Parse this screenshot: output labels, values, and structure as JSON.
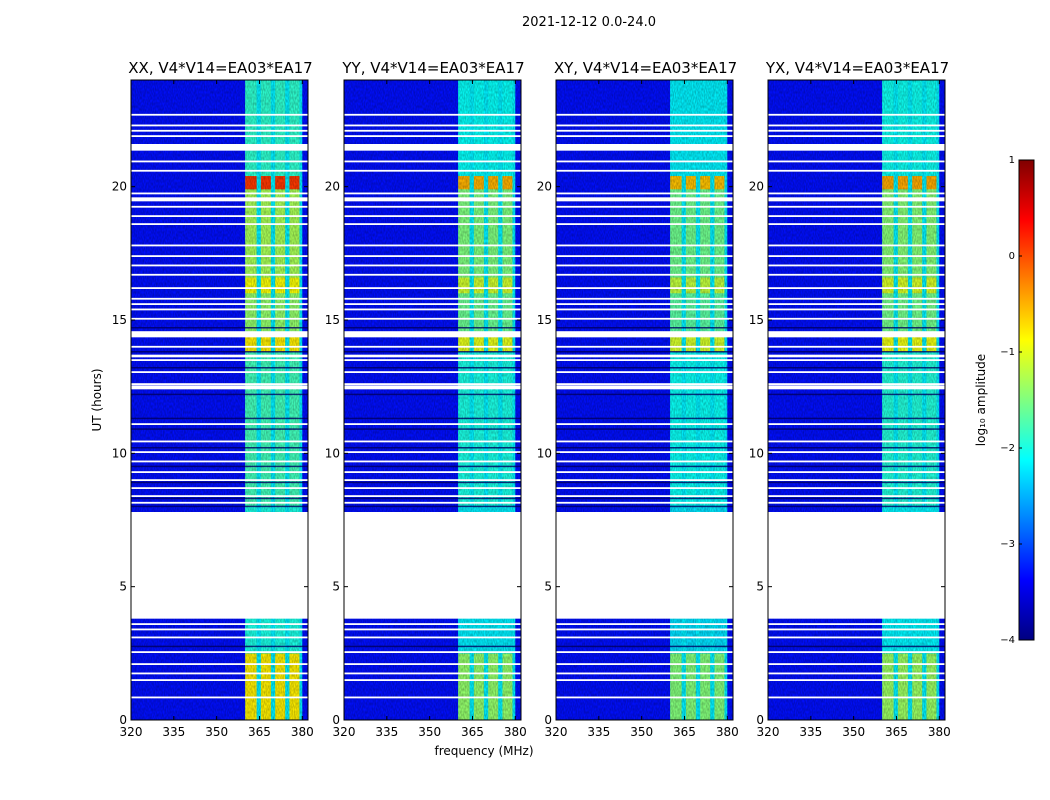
{
  "figure": {
    "suptitle": "2021-12-12 0.0-24.0"
  },
  "chart_data": {
    "type": "heatmap",
    "title": "2021-12-12 0.0-24.0",
    "xlabel": "frequency (MHz)",
    "ylabel": "UT (hours)",
    "xlim": [
      320,
      382
    ],
    "ylim": [
      0,
      24
    ],
    "x_ticks": [
      "320",
      "335",
      "350",
      "365",
      "380"
    ],
    "y_ticks": [
      "0",
      "5",
      "10",
      "15",
      "20"
    ],
    "x_tick_values": [
      320,
      335,
      350,
      365,
      380
    ],
    "y_tick_values": [
      0,
      5,
      10,
      15,
      20
    ],
    "panels": [
      {
        "title": "XX, V4*V14=EA03*EA17",
        "strength": 1.0
      },
      {
        "title": "YY, V4*V14=EA03*EA17",
        "strength": 0.75
      },
      {
        "title": "XY, V4*V14=EA03*EA17",
        "strength": 0.65
      },
      {
        "title": "YX, V4*V14=EA03*EA17",
        "strength": 0.8
      }
    ],
    "band_mhz": [
      360,
      380
    ],
    "band_sub_mhz": [
      [
        360,
        364
      ],
      [
        365.5,
        369
      ],
      [
        370.5,
        374
      ],
      [
        375.5,
        379
      ]
    ],
    "data_gap_hours": [
      3.8,
      7.8
    ],
    "colorbar": {
      "label": "log₁₀ amplitude",
      "range": [
        -4,
        1
      ],
      "ticks": [
        "1",
        "0",
        "−1",
        "−2",
        "−3",
        "−4"
      ],
      "tick_values": [
        1,
        0,
        -1,
        -2,
        -3,
        -4
      ],
      "colors": [
        "#000080",
        "#0000ff",
        "#0080ff",
        "#00ffff",
        "#80ff80",
        "#ffff00",
        "#ff8000",
        "#ff0000",
        "#800000"
      ]
    }
  }
}
